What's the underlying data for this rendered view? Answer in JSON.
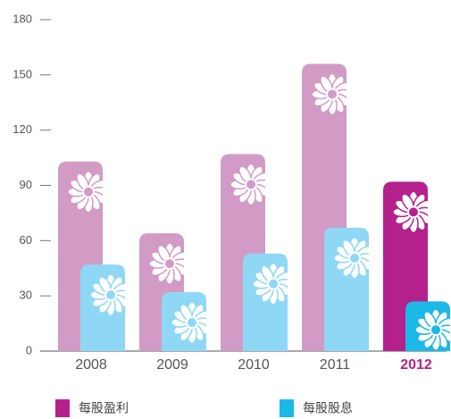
{
  "chart_data": {
    "type": "bar",
    "categories": [
      "2008",
      "2009",
      "2010",
      "2011",
      "2012"
    ],
    "series": [
      {
        "name": "每股盈利",
        "color": "#d19bc6",
        "highlight_color": "#b5218c",
        "values": [
          103,
          64,
          107,
          156,
          92
        ]
      },
      {
        "name": "每股股息",
        "color": "#8fd8f5",
        "highlight_color": "#1bb8e8",
        "values": [
          47,
          32,
          53,
          67,
          27
        ]
      }
    ],
    "highlight_index": 4,
    "ylim": [
      0,
      180
    ],
    "yticks": [
      0,
      30,
      60,
      90,
      120,
      150,
      180
    ],
    "grid": false,
    "legend": "bottom"
  }
}
